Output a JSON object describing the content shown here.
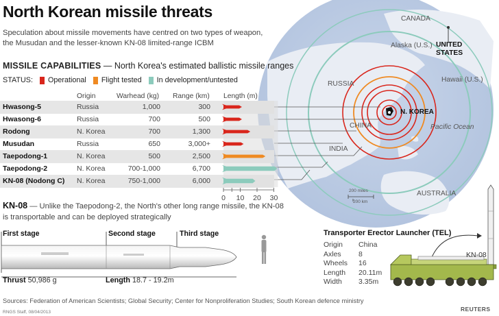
{
  "title": "North Korean missile threats",
  "subtitle": "Speculation about missile movements have centred on two types of weapon, the Musudan and the lesser-known KN-08 limited-range ICBM",
  "capabilities": {
    "heading": "MISSILE CAPABILITIES",
    "heading_note": "— North Korea's estimated ballistic missile ranges",
    "status_label": "STATUS:",
    "status": [
      {
        "label": "Operational",
        "color": "#d9261c"
      },
      {
        "label": "Flight tested",
        "color": "#ef8a22"
      },
      {
        "label": "In development/untested",
        "color": "#8ccbbc"
      }
    ],
    "columns": {
      "origin": "Origin",
      "warhead": "Warhead (kg)",
      "range": "Range (km)",
      "length": "Length (m)"
    },
    "missiles": [
      {
        "name": "Hwasong-5",
        "origin": "Russia",
        "warhead": "1,000",
        "range": "300",
        "length_m": 11,
        "status": "operational"
      },
      {
        "name": "Hwasong-6",
        "origin": "Russia",
        "warhead": "700",
        "range": "500",
        "length_m": 11,
        "status": "operational"
      },
      {
        "name": "Rodong",
        "origin": "N. Korea",
        "warhead": "700",
        "range": "1,300",
        "length_m": 16,
        "status": "operational"
      },
      {
        "name": "Musudan",
        "origin": "Russia",
        "warhead": "650",
        "range": "3,000+",
        "length_m": 12,
        "status": "operational"
      },
      {
        "name": "Taepodong-1",
        "origin": "N. Korea",
        "warhead": "500",
        "range": "2,500",
        "length_m": 25,
        "status": "flight"
      },
      {
        "name": "Taepodong-2",
        "origin": "N. Korea",
        "warhead": "700-1,000",
        "range": "6,700",
        "length_m": 32,
        "status": "development"
      },
      {
        "name": "KN-08 (Nodong C)",
        "origin": "N. Korea",
        "warhead": "750-1,000",
        "range": "6,000",
        "length_m": 19,
        "status": "development"
      }
    ],
    "length_axis": {
      "ticks": [
        "0",
        "10",
        "20",
        "30"
      ],
      "minor_ticks": [
        "5"
      ]
    }
  },
  "map": {
    "labels": {
      "canada": "CANADA",
      "alaska": "Alaska (U.S.)",
      "us": "UNITED STATES",
      "russia": "RUSSIA",
      "hawaii": "Hawaii (U.S.)",
      "nkorea": "N. KOREA",
      "china": "CHINA",
      "pacific": "Pacific Ocean",
      "india": "INDIA",
      "australia": "AUSTRALIA"
    },
    "scale": {
      "miles": "200 miles",
      "km": "200 km"
    },
    "range_ring_color": "#d9261c",
    "dev_ring_color": "#8ccbbc"
  },
  "kn08": {
    "heading": "KN-08",
    "text": "— Unlike the Taepodong-2, the North's other long range missile, the KN-08 is transportable and can be deployed strategically",
    "stages": [
      "First stage",
      "Second stage",
      "Third stage"
    ],
    "thrust_label": "Thrust",
    "thrust_value": "50,986 g",
    "length_label": "Length",
    "length_value": "18.7 - 19.2m"
  },
  "tel": {
    "heading": "Transporter Erector Launcher (TEL)",
    "rows": [
      {
        "label": "Origin",
        "value": "China"
      },
      {
        "label": "Axles",
        "value": "8"
      },
      {
        "label": "Wheels",
        "value": "16"
      },
      {
        "label": "Length",
        "value": "20.11m"
      },
      {
        "label": "Width",
        "value": "3.35m"
      }
    ],
    "missile_label": "KN-08"
  },
  "sources": "Sources: Federation of American Scientists; Global Security; Center for Nonproliferation Studies; South Korean defence ministry",
  "credit": "RNGS Staff, 08/04/2013",
  "agency": "REUTERS"
}
